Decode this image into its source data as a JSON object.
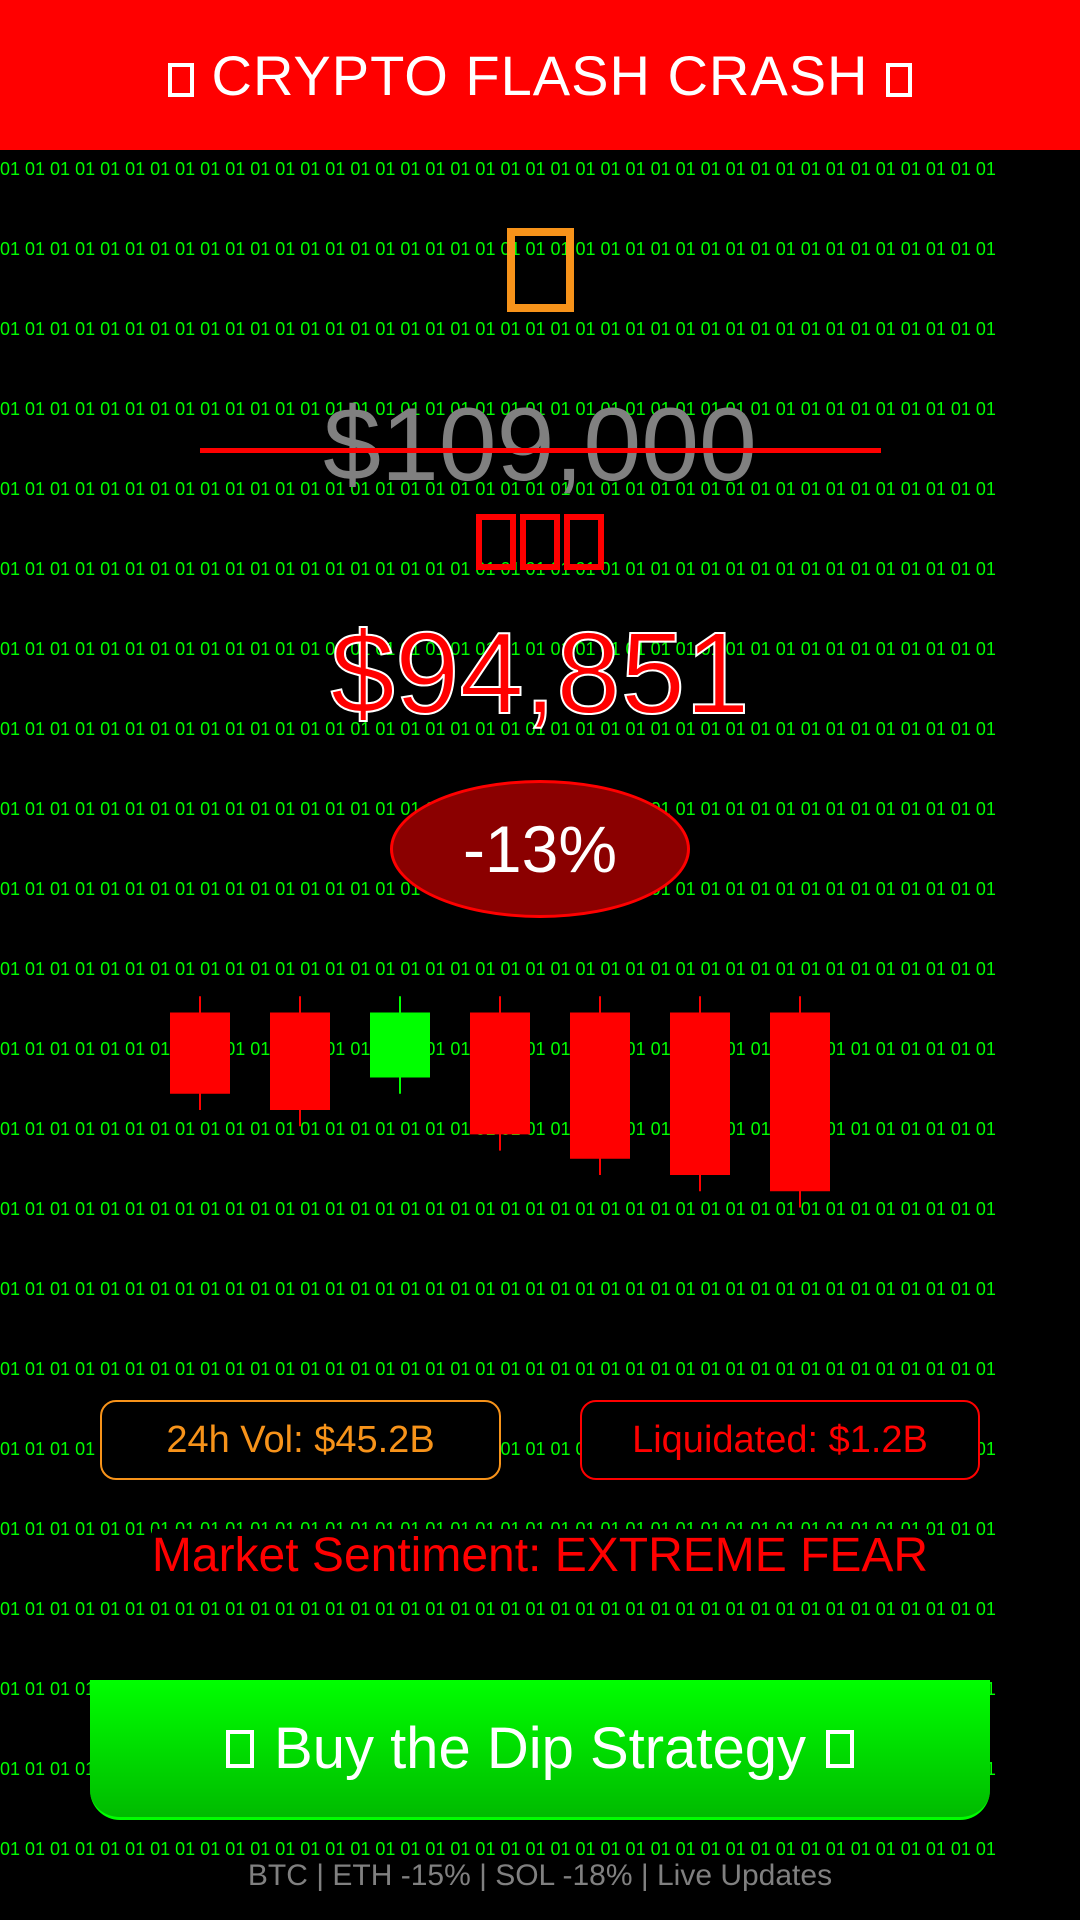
{
  "header": {
    "title": "CRYPTO FLASH CRASH",
    "left_icon": "alert-box-icon",
    "right_icon": "alert-box-icon",
    "background": "#ff0000"
  },
  "background_pattern": {
    "text": "01",
    "color": "#00ff00"
  },
  "coin": {
    "icon": "bitcoin-coin-icon",
    "color": "#f7931a"
  },
  "prices": {
    "old_price": "$109,000",
    "down_arrows_icon": "triple-down-arrow-icon",
    "new_price": "$94,851",
    "change_percent": "-13%"
  },
  "chart_data": {
    "type": "candlestick",
    "candles": [
      {
        "open": 100,
        "close": 95,
        "high": 101,
        "low": 94,
        "direction": "down"
      },
      {
        "open": 100,
        "close": 94,
        "high": 101,
        "low": 93,
        "direction": "down"
      },
      {
        "open": 96,
        "close": 100,
        "high": 101,
        "low": 95,
        "direction": "up"
      },
      {
        "open": 100,
        "close": 92.5,
        "high": 101,
        "low": 91.5,
        "direction": "down"
      },
      {
        "open": 100,
        "close": 91,
        "high": 101,
        "low": 90,
        "direction": "down"
      },
      {
        "open": 100,
        "close": 90,
        "high": 101,
        "low": 89,
        "direction": "down"
      },
      {
        "open": 100,
        "close": 89,
        "high": 101,
        "low": 88,
        "direction": "down"
      }
    ],
    "ylim": [
      86,
      102
    ],
    "colors": {
      "up": "#00ff00",
      "down": "#ff0000"
    },
    "grid": false,
    "legend": "none"
  },
  "stats": {
    "volume": "24h Vol: $45.2B",
    "liquidated": "Liquidated: $1.2B"
  },
  "sentiment": "Market Sentiment: EXTREME FEAR",
  "cta": {
    "label": "Buy the Dip Strategy",
    "left_icon": "box-icon",
    "right_icon": "box-icon",
    "color": "#00ff00"
  },
  "footer": {
    "ticker": "BTC | ETH -15% | SOL -18% | Live Updates"
  }
}
